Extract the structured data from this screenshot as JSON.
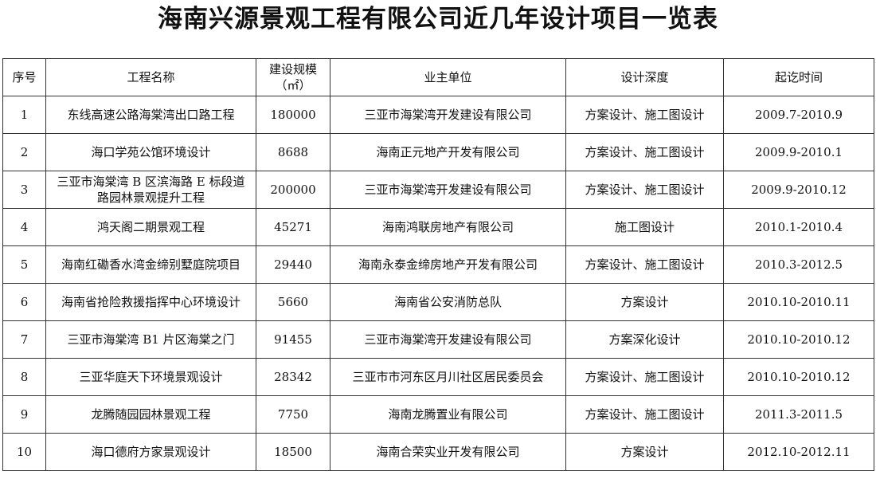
{
  "title": "海南兴源景观工程有限公司近几年设计项目一览表",
  "columns": [
    "序号",
    "工程名称",
    "建设规模",
    "（㎡）",
    "业主单位",
    "设计深度",
    "起讫时间"
  ],
  "rows": [
    {
      "no": "1",
      "name": "东线高速公路海棠湾出口路工程",
      "scale": "180000",
      "owner": "三亚市海棠湾开发建设有限公司",
      "depth": "方案设计、施工图设计",
      "period": "2009.7-2010.9"
    },
    {
      "no": "2",
      "name": "海口学苑公馆环境设计",
      "scale": "8688",
      "owner": "海南正元地产开发有限公司",
      "depth": "方案设计、施工图设计",
      "period": "2009.9-2010.1"
    },
    {
      "no": "3",
      "name": "三亚市海棠湾 B 区滨海路 E 标段道路园林景观提升工程",
      "scale": "200000",
      "owner": "三亚市海棠湾开发建设有限公司",
      "depth": "方案设计、施工图设计",
      "period": "2009.9-2010.12"
    },
    {
      "no": "4",
      "name": "鸿天阁二期景观工程",
      "scale": "45271",
      "owner": "海南鸿联房地产有限公司",
      "depth": "施工图设计",
      "period": "2010.1-2010.4"
    },
    {
      "no": "5",
      "name": "海南红磡香水湾金缔别墅庭院项目",
      "scale": "29440",
      "owner": "海南永泰金缔房地产开发有限公司",
      "depth": "方案设计、施工图设计",
      "period": "2010.3-2012.5"
    },
    {
      "no": "6",
      "name": "海南省抢险救援指挥中心环境设计",
      "scale": "5660",
      "owner": "海南省公安消防总队",
      "depth": "方案设计",
      "period": "2010.10-2010.11"
    },
    {
      "no": "7",
      "name": "三亚市海棠湾 B1 片区海棠之门",
      "scale": "91455",
      "owner": "三亚市海棠湾开发建设有限公司",
      "depth": "方案深化设计",
      "period": "2010.10-2010.12"
    },
    {
      "no": "8",
      "name": "三亚华庭天下环境景观设计",
      "scale": "28342",
      "owner": "三亚市市河东区月川社区居民委员会",
      "depth": "方案设计、施工图设计",
      "period": "2010.10-2010.12"
    },
    {
      "no": "9",
      "name": "龙腾随园园林景观工程",
      "scale": "7750",
      "owner": "海南龙腾置业有限公司",
      "depth": "方案设计、施工图设计",
      "period": "2011.3-2011.5"
    },
    {
      "no": "10",
      "name": "海口德府方家景观设计",
      "scale": "18500",
      "owner": "海南合荣实业开发有限公司",
      "depth": "方案设计",
      "period": "2012.10-2012.11"
    }
  ]
}
